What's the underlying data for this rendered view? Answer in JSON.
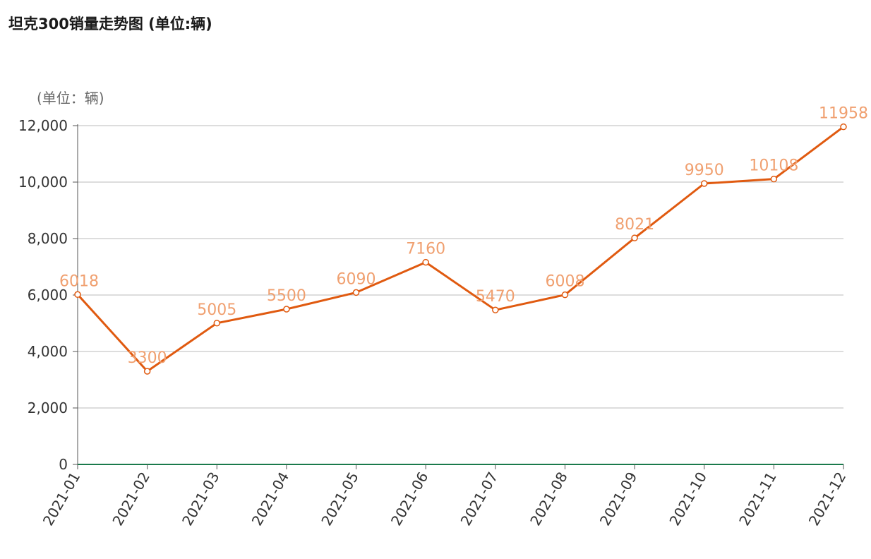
{
  "chart_data": {
    "type": "line",
    "title": "坦克300销量走势图 (单位:辆)",
    "unit_label": "(单位：辆)",
    "categories": [
      "2021-01",
      "2021-02",
      "2021-03",
      "2021-04",
      "2021-05",
      "2021-06",
      "2021-07",
      "2021-08",
      "2021-09",
      "2021-10",
      "2021-11",
      "2021-12"
    ],
    "series": [
      {
        "values": [
          6018,
          3300,
          5005,
          5500,
          6090,
          7160,
          5470,
          6008,
          8021,
          9950,
          10108,
          11958
        ]
      }
    ],
    "data_labels": [
      "6018",
      "3300",
      "5005",
      "5500",
      "6090",
      "7160",
      "5470",
      "6008",
      "8021",
      "9950",
      "10108",
      "11958"
    ],
    "yticks": [
      "0",
      "2,000",
      "4,000",
      "6,000",
      "8,000",
      "10,000",
      "12,000"
    ],
    "ytick_values": [
      0,
      2000,
      4000,
      6000,
      8000,
      10000,
      12000
    ],
    "ylim": [
      0,
      12000
    ],
    "grid": true,
    "colors": {
      "line": "#e05a10",
      "marker_fill": "#ffffff",
      "label": "#f0a070",
      "x_axis": "#1a7a4c",
      "grid": "#bbbbbb"
    }
  }
}
